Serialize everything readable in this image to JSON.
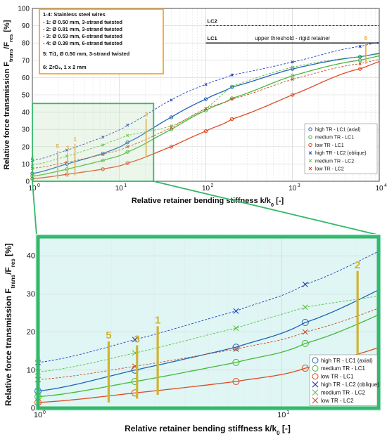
{
  "chart_data": [
    {
      "type": "line",
      "x_scale": "log",
      "xlim": [
        1,
        10000
      ],
      "ylim": [
        0,
        100
      ],
      "xlabel": "Relative retainer bending stiffness k/k",
      "xlabel_sub": "0",
      "xlabel_unit": "[-]",
      "ylabel": "Relative force transmission F",
      "ylabel_sub1": "trans",
      "ylabel_mid": "/F",
      "ylabel_sub2": "res",
      "ylabel_unit": "[%]",
      "x_ticks": [
        "10",
        "10",
        "10",
        "10",
        "10"
      ],
      "x_tick_exps": [
        "0",
        "1",
        "2",
        "3",
        "4"
      ],
      "y_ticks": [
        "0",
        "10",
        "20",
        "30",
        "40",
        "50",
        "60",
        "70",
        "80",
        "90",
        "100"
      ],
      "grid": true,
      "note_box": [
        "1-4: Stainless steel wires",
        "- 1: Ø 0.50 mm, 3-strand twisted",
        "- 2: Ø 0.81 mm, 3-strand twisted",
        "- 3: Ø 0.53 mm, 6-strand twisted",
        "- 4: Ø 0.38 mm, 6-strand twisted",
        "5: Ti1, Ø 0.50 mm, 3-strand twisted",
        "6: ZrO₂, 1 x 2 mm"
      ],
      "threshold_lines": [
        {
          "label": "LC2",
          "y": 90,
          "x_from": 100,
          "x_to": 10000,
          "style": "dashed"
        },
        {
          "label": "LC1",
          "y": 80,
          "x_from": 100,
          "x_to": 10000,
          "style": "solid"
        }
      ],
      "threshold_note": "upper threshold - rigid retainer",
      "series": [
        {
          "name": "high TR - LC1 (axial)",
          "color": "#1f63b8",
          "marker": "o",
          "line": "solid",
          "x": [
            1,
            2.5,
            6.5,
            12.5,
            40,
            100,
            200,
            1000,
            6000
          ],
          "y": [
            4.5,
            10,
            16,
            22.5,
            37,
            47.5,
            54.5,
            65,
            72
          ]
        },
        {
          "name": "medium TR - LC1",
          "color": "#48b83a",
          "marker": "o",
          "line": "solid",
          "x": [
            1,
            2.5,
            6.5,
            12.5,
            40,
            100,
            200,
            1000,
            6000
          ],
          "y": [
            3,
            7,
            12,
            17,
            30,
            41,
            48,
            61,
            70
          ]
        },
        {
          "name": "low TR - LC1",
          "color": "#e04a24",
          "marker": "o",
          "line": "solid",
          "x": [
            1,
            2.5,
            6.5,
            12.5,
            40,
            100,
            200,
            1000,
            6000
          ],
          "y": [
            1.5,
            4,
            7,
            10.5,
            20,
            29,
            36,
            50,
            65
          ]
        },
        {
          "name": "high TR - LC2 (oblique)",
          "color": "#1f3fbf",
          "marker": "x",
          "line": "dashed",
          "x": [
            1,
            2.5,
            6.5,
            12.5,
            40,
            100,
            200,
            1000,
            6000
          ],
          "y": [
            12,
            18,
            25.5,
            32.5,
            47,
            56,
            61.5,
            69,
            78
          ]
        },
        {
          "name": "medium TR - LC2",
          "color": "#58c040",
          "marker": "x",
          "line": "dashed",
          "x": [
            1,
            2.5,
            6.5,
            12.5,
            40,
            100,
            200,
            1000,
            6000
          ],
          "y": [
            9.5,
            14.5,
            21,
            26.5,
            32,
            42,
            55,
            66,
            72
          ]
        },
        {
          "name": "low TR - LC2",
          "color": "#c94a28",
          "marker": "x",
          "line": "dashed",
          "x": [
            1,
            2.5,
            6.5,
            12.5,
            40,
            100,
            200,
            1000,
            6000
          ],
          "y": [
            7.5,
            11,
            15.5,
            20,
            31,
            42,
            47.5,
            59,
            68
          ]
        }
      ],
      "range_bars": [
        {
          "label": "1",
          "x": 3.1,
          "y_low": 3.5,
          "y_high": 21.5
        },
        {
          "label": "2",
          "x": 20.5,
          "y_low": 14,
          "y_high": 36
        },
        {
          "label": "3",
          "x": 2.55,
          "y_low": 2.5,
          "y_high": 16.5
        },
        {
          "label": "4",
          "x": 1.0,
          "y_low": 1,
          "y_high": 11
        },
        {
          "label": "5",
          "x": 1.95,
          "y_low": 1.5,
          "y_high": 17.5
        },
        {
          "label": "6",
          "x": 7000,
          "y_low": 68,
          "y_high": 80
        }
      ],
      "legend_position": "right-middle"
    },
    {
      "type": "line",
      "x_scale": "log",
      "xlim": [
        1,
        25
      ],
      "ylim": [
        0,
        45
      ],
      "xlabel": "Relative retainer bending stiffness k/k",
      "xlabel_sub": "0",
      "xlabel_unit": "[-]",
      "ylabel": "Relative force transmission F",
      "ylabel_sub1": "trans",
      "ylabel_mid": "/F",
      "ylabel_sub2": "res",
      "ylabel_unit": "[%]",
      "x_ticks": [
        "10",
        "10"
      ],
      "x_tick_exps": [
        "0",
        "1"
      ],
      "y_ticks": [
        "0",
        "10",
        "20",
        "30",
        "40"
      ],
      "legend_position": "bottom-right"
    }
  ]
}
